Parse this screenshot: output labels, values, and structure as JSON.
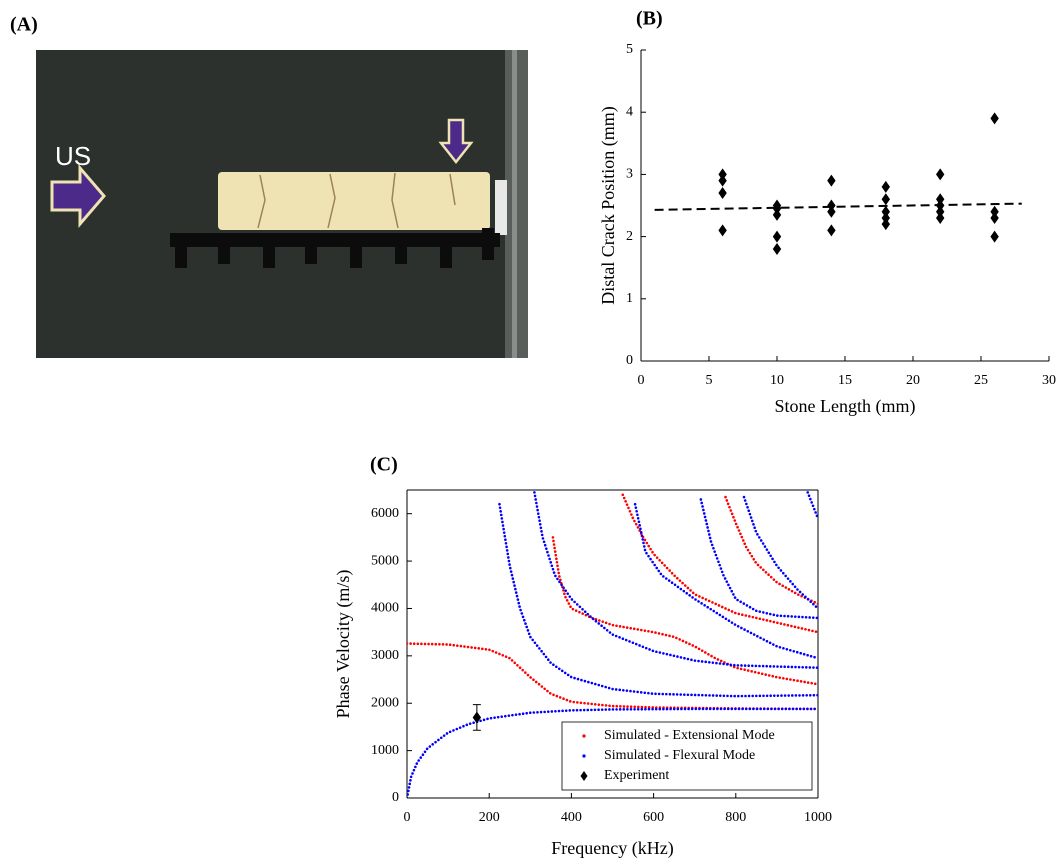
{
  "panel_labels": [
    "(A)",
    "(B)",
    "(C)"
  ],
  "photo": {
    "text": "US"
  },
  "chart_data": [
    {
      "type": "scatter",
      "xlabel": "Stone Length (mm)",
      "ylabel": "Distal Crack Position (mm)",
      "xlim": [
        0,
        30
      ],
      "ylim": [
        0,
        5
      ],
      "xticks": [
        0,
        5,
        10,
        15,
        20,
        25,
        30
      ],
      "yticks": [
        0,
        1,
        2,
        3,
        4,
        5
      ],
      "box": false,
      "series": [
        {
          "color": "#000000",
          "marker": "diamond",
          "x": [
            6,
            6,
            6,
            6,
            10,
            10,
            10,
            10,
            10,
            14,
            14,
            14,
            14,
            18,
            18,
            18,
            18,
            18,
            22,
            22,
            22,
            22,
            22,
            26,
            26,
            26,
            26
          ],
          "values": [
            3.0,
            2.9,
            2.7,
            2.1,
            2.5,
            2.45,
            2.35,
            2.0,
            1.8,
            2.9,
            2.5,
            2.4,
            2.1,
            2.8,
            2.6,
            2.4,
            2.3,
            2.2,
            3.0,
            2.6,
            2.5,
            2.4,
            2.3,
            3.9,
            2.4,
            2.3,
            2.0
          ]
        },
        {
          "color": "#000000",
          "style": "dashed",
          "x": [
            1,
            28
          ],
          "values": [
            2.43,
            2.53
          ]
        }
      ]
    },
    {
      "type": "line",
      "xlabel": "Frequency (kHz)",
      "ylabel": "Phase Velocity (m/s)",
      "xlim": [
        0,
        1000
      ],
      "ylim": [
        0,
        6500
      ],
      "xticks": [
        0,
        200,
        400,
        600,
        800,
        1000
      ],
      "yticks": [
        0,
        1000,
        2000,
        3000,
        4000,
        5000,
        6000
      ],
      "box": true,
      "legend": "lower right",
      "series": [
        {
          "name": "Simulated - Extensional Mode",
          "color": "#ff0000",
          "style": "dotted",
          "x": [
            0,
            100,
            200,
            250,
            300,
            350,
            400,
            500,
            600,
            800,
            1000,
            null,
            355,
            370,
            385,
            400,
            450,
            500,
            600,
            650,
            700,
            750,
            800,
            900,
            1000,
            null,
            525,
            550,
            575,
            600,
            650,
            700,
            800,
            900,
            1000,
            null,
            775,
            800,
            825,
            850,
            900,
            950,
            1000
          ],
          "values": [
            3260,
            3240,
            3130,
            2950,
            2550,
            2200,
            2030,
            1940,
            1910,
            1890,
            1880,
            null,
            5500,
            4700,
            4250,
            4000,
            3800,
            3650,
            3500,
            3400,
            3200,
            2950,
            2750,
            2550,
            2400,
            null,
            6400,
            5900,
            5500,
            5150,
            4700,
            4300,
            3900,
            3700,
            3500,
            null,
            6350,
            5800,
            5300,
            4950,
            4550,
            4300,
            4100
          ]
        },
        {
          "name": "Simulated - Flexural Mode",
          "color": "#0000ff",
          "style": "dotted",
          "x": [
            0,
            10,
            25,
            50,
            100,
            150,
            200,
            300,
            400,
            500,
            700,
            1000,
            null,
            225,
            250,
            275,
            300,
            350,
            400,
            500,
            600,
            800,
            1000,
            null,
            310,
            330,
            360,
            400,
            450,
            500,
            600,
            700,
            800,
            1000,
            null,
            555,
            580,
            620,
            700,
            800,
            900,
            1000,
            null,
            715,
            740,
            770,
            800,
            850,
            900,
            1000,
            null,
            820,
            850,
            900,
            950,
            1000,
            null,
            975,
            1000
          ],
          "values": [
            0,
            450,
            750,
            1050,
            1380,
            1560,
            1680,
            1800,
            1850,
            1870,
            1880,
            1880,
            null,
            6200,
            4900,
            4000,
            3400,
            2850,
            2550,
            2300,
            2200,
            2150,
            2170,
            null,
            6450,
            5500,
            4700,
            4200,
            3800,
            3450,
            3100,
            2900,
            2800,
            2750,
            null,
            6200,
            5200,
            4700,
            4200,
            3650,
            3200,
            2950,
            null,
            6300,
            5400,
            4700,
            4200,
            3950,
            3850,
            3800,
            null,
            6350,
            5600,
            4900,
            4400,
            4000,
            null,
            6450,
            5900
          ]
        },
        {
          "name": "Experiment",
          "color": "#000000",
          "marker": "diamond",
          "x": [
            170
          ],
          "values": [
            1700
          ],
          "errors": [
            270
          ]
        }
      ]
    }
  ]
}
